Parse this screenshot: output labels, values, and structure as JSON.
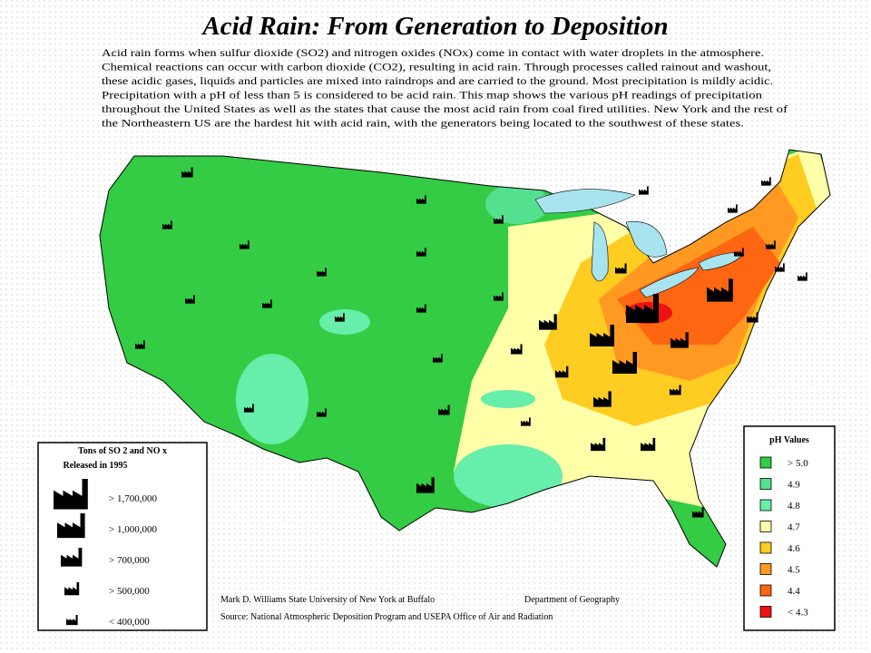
{
  "title": "Acid Rain:  From Generation to Deposition",
  "description": [
    "Acid rain forms when sulfur dioxide (SO2) and nitrogen oxides (NOx) come in contact with water droplets in the atmosphere.",
    "Chemical reactions can occur with carbon dioxide (CO2), resulting in acid rain.  Through processes called rainout and washout,",
    "these acidic gases, liquids and particles are mixed into raindrops and are carried to the ground.  Most precipitation is mildly acidic.",
    "Precipitation with a pH of less than 5 is considered to be acid rain.  This map shows the various pH readings of precipitation",
    "throughout the United States as well as the states that cause the most acid rain from coal fired utilities.  New York and the rest of",
    "the Northeastern US are the hardest hit with acid rain, with the generators being located to the southwest of these states."
  ],
  "emissions_legend": {
    "title_lines": [
      "Tons of SO  2 and NO  x",
      "Released in 1995"
    ],
    "items": [
      "> 1,700,000",
      "> 1,000,000",
      ">  700,000",
      ">  500,000",
      "<  400,000"
    ]
  },
  "ph_legend": {
    "title": "pH Values",
    "items": [
      {
        "label": "> 5.0",
        "color": "#33cc44"
      },
      {
        "label": "4.9",
        "color": "#55e090"
      },
      {
        "label": "4.8",
        "color": "#66eeaa"
      },
      {
        "label": "4.7",
        "color": "#ffffa8"
      },
      {
        "label": "4.6",
        "color": "#ffcc22"
      },
      {
        "label": "4.5",
        "color": "#ff9922"
      },
      {
        "label": "4.4",
        "color": "#ff6611"
      },
      {
        "label": "< 4.3",
        "color": "#ee1111"
      }
    ]
  },
  "credits": {
    "author": "Mark D. Williams    State University of New York at Buffalo",
    "department": "Department of Geography",
    "source": "Source:  National Atmospheric Deposition Program and USEPA Office of Air and Radiation"
  }
}
